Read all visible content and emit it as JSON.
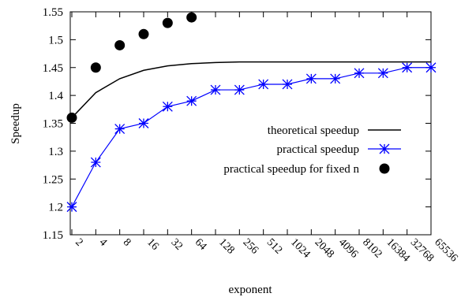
{
  "chart_data": {
    "type": "line",
    "xlabel": "exponent",
    "ylabel": "Speedup",
    "ylim": [
      1.15,
      1.55
    ],
    "yticks": [
      "1.15",
      "1.2",
      "1.25",
      "1.3",
      "1.35",
      "1.4",
      "1.45",
      "1.5",
      "1.55"
    ],
    "categories": [
      "2",
      "4",
      "8",
      "16",
      "32",
      "64",
      "128",
      "256",
      "512",
      "1024",
      "2048",
      "4096",
      "8102",
      "16384",
      "32768",
      "65536"
    ],
    "grid": false,
    "legend_position": "right",
    "series": [
      {
        "name": "theoretical speedup",
        "style": "line",
        "color": "#000000",
        "values": [
          1.36,
          1.405,
          1.43,
          1.445,
          1.453,
          1.457,
          1.459,
          1.46,
          1.46,
          1.46,
          1.46,
          1.46,
          1.46,
          1.46,
          1.46,
          1.46
        ]
      },
      {
        "name": "practical speedup",
        "style": "line-star",
        "color": "#0000ff",
        "values": [
          1.2,
          1.28,
          1.34,
          1.35,
          1.38,
          1.39,
          1.41,
          1.41,
          1.42,
          1.42,
          1.43,
          1.43,
          1.44,
          1.44,
          1.45,
          1.45
        ]
      },
      {
        "name": "practical speedup for fixed n",
        "style": "dot",
        "color": "#000000",
        "values": [
          1.36,
          1.45,
          1.49,
          1.51,
          1.53,
          1.54,
          null,
          null,
          null,
          null,
          null,
          null,
          null,
          null,
          null,
          null
        ]
      }
    ]
  }
}
